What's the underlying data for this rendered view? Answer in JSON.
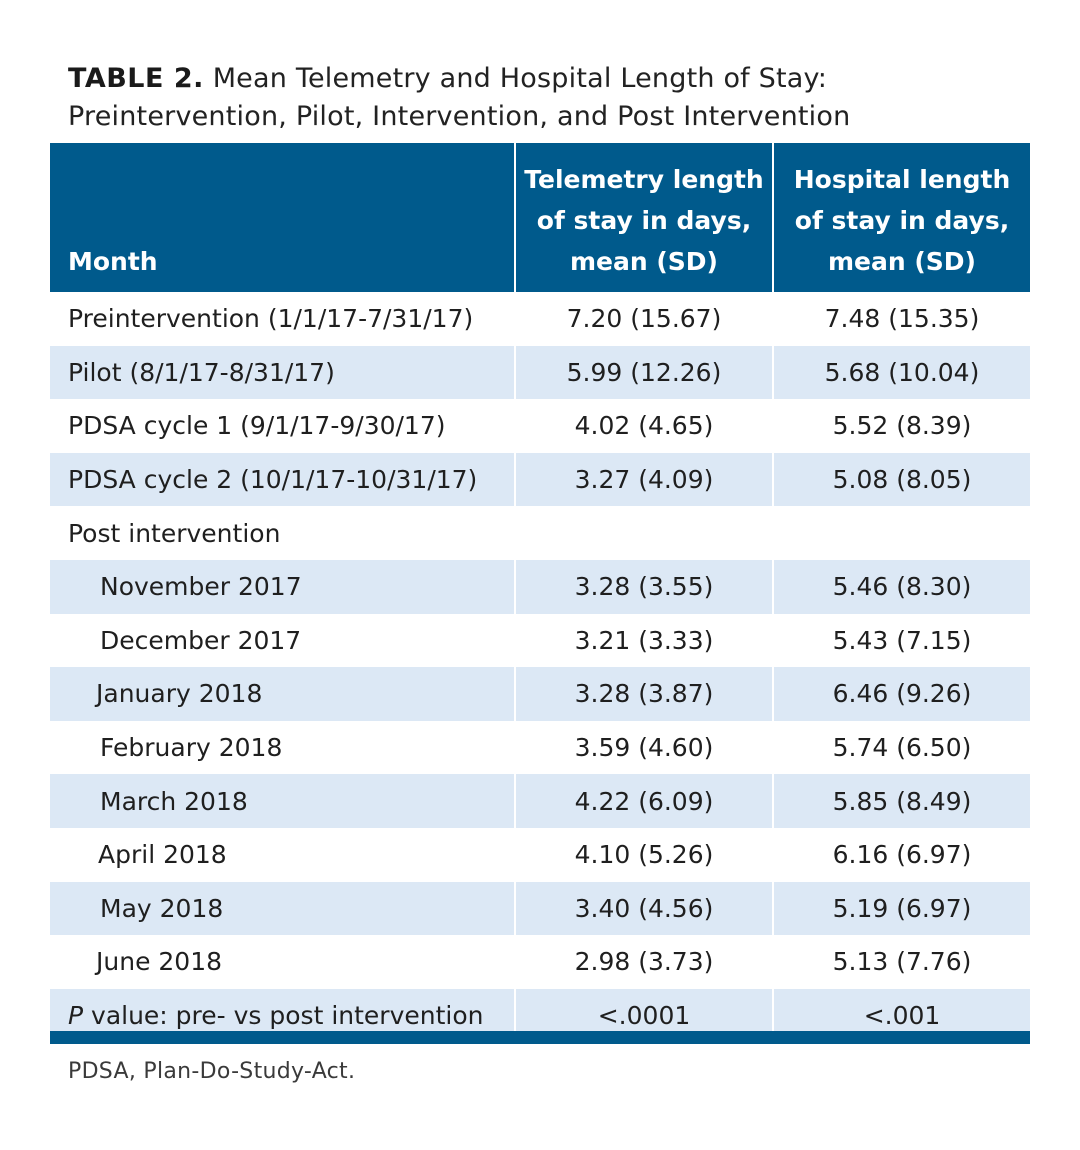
{
  "caption": {
    "label": "TABLE 2.",
    "text": "Mean Telemetry and Hospital Length of Stay: Preintervention, Pilot, Intervention, and Post Intervention"
  },
  "header": {
    "month": "Month",
    "telemetry": "Telemetry length of stay in days, mean (SD)",
    "hospital": "Hospital length of stay in days, mean (SD)"
  },
  "rows": [
    {
      "month": "Preintervention (1/1/17-7/31/17)",
      "telemetry": "7.20 (15.67)",
      "hospital": "7.48 (15.35)"
    },
    {
      "month": "Pilot (8/1/17-8/31/17)",
      "telemetry": "5.99 (12.26)",
      "hospital": "5.68 (10.04)"
    },
    {
      "month": "PDSA cycle 1 (9/1/17-9/30/17)",
      "telemetry": "4.02 (4.65)",
      "hospital": "5.52 (8.39)"
    },
    {
      "month": "PDSA cycle 2 (10/1/17-10/31/17)",
      "telemetry": "3.27 (4.09)",
      "hospital": "5.08 (8.05)"
    },
    {
      "month": "Post intervention",
      "telemetry": "",
      "hospital": ""
    },
    {
      "month": "November 2017",
      "telemetry": "3.28 (3.55)",
      "hospital": "5.46 (8.30)"
    },
    {
      "month": "December 2017",
      "telemetry": "3.21 (3.33)",
      "hospital": "5.43 (7.15)"
    },
    {
      "month": "January 2018",
      "telemetry": "3.28 (3.87)",
      "hospital": "6.46 (9.26)"
    },
    {
      "month": "February 2018",
      "telemetry": "3.59 (4.60)",
      "hospital": "5.74 (6.50)"
    },
    {
      "month": "March 2018",
      "telemetry": "4.22 (6.09)",
      "hospital": "5.85 (8.49)"
    },
    {
      "month": "April 2018",
      "telemetry": "4.10 (5.26)",
      "hospital": "6.16 (6.97)"
    },
    {
      "month": "May 2018",
      "telemetry": "3.40 (4.56)",
      "hospital": "5.19 (6.97)"
    },
    {
      "month": "June 2018",
      "telemetry": "2.98 (3.73)",
      "hospital": "5.13 (7.76)"
    }
  ],
  "pvalue_row": {
    "p_letter": "P",
    "label": " value: pre- vs post intervention",
    "telemetry": "<.0001",
    "hospital": "<.001"
  },
  "footnote": "PDSA, Plan-Do-Study-Act.",
  "colors": {
    "header_bg": "#005a8c",
    "shaded_row": "#dce8f5"
  }
}
